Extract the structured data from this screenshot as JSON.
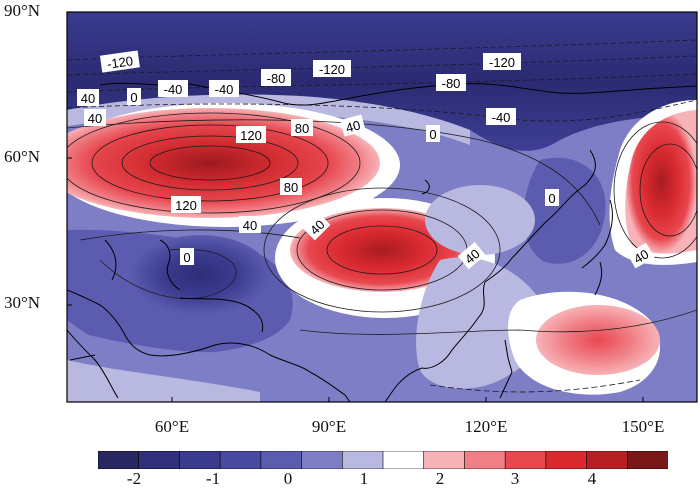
{
  "latitude_labels": [
    "90°N",
    "60°N",
    "30°N"
  ],
  "longitude_labels": [
    "60°E",
    "90°E",
    "120°E",
    "150°E"
  ],
  "colorbar": {
    "tick_labels": [
      "-2",
      "-1",
      "0",
      "1",
      "2",
      "3",
      "4"
    ],
    "colors": [
      "#272660",
      "#302f7a",
      "#3a3b8f",
      "#4849a0",
      "#5b5bb0",
      "#7e7ec7",
      "#b9b8e0",
      "#ffffff",
      "#f7b3b7",
      "#f07f86",
      "#e8474f",
      "#d92a30",
      "#b81f24",
      "#7a1717"
    ]
  },
  "contour_labels": [
    "-120",
    "-120",
    "-120",
    "-80",
    "-80",
    "-40",
    "-40",
    "-40",
    "0",
    "0",
    "0",
    "0",
    "40",
    "40",
    "40",
    "40",
    "40",
    "40",
    "40",
    "80",
    "80",
    "120",
    "120"
  ]
}
